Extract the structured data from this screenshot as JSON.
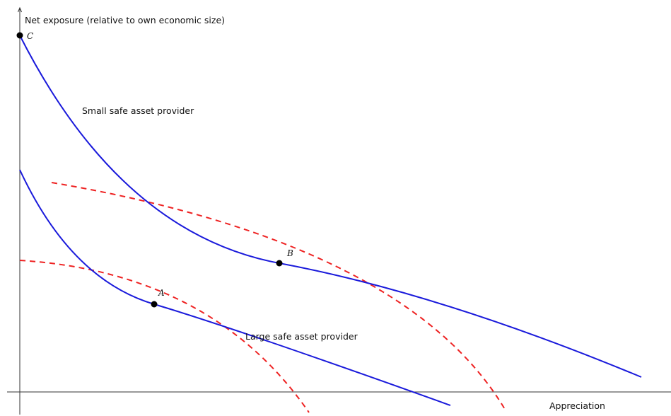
{
  "axes": {
    "y_label": "Net exposure (relative to own economic size)",
    "x_label": "Appreciation"
  },
  "curves": [
    {
      "name": "Small safe asset provider",
      "label": "Small safe asset provider",
      "color": "#1a1adb",
      "style": "solid"
    },
    {
      "name": "Large safe asset provider",
      "label": "Large safe asset provider",
      "color": "#1a1adb",
      "style": "solid"
    }
  ],
  "tangent_curves": [
    {
      "color": "#ee2222",
      "style": "dashed"
    },
    {
      "color": "#ee2222",
      "style": "dashed"
    }
  ],
  "points": [
    {
      "label": "A"
    },
    {
      "label": "B"
    },
    {
      "label": "C"
    }
  ]
}
